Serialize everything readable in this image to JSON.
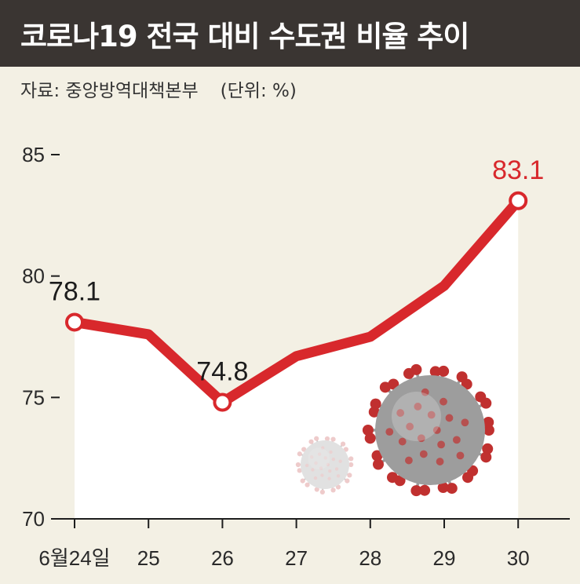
{
  "title": "코로나19 전국 대비 수도권 비율 추이",
  "source": "자료: 중앙방역대책본부",
  "unit": "(단위: %)",
  "colors": {
    "line": "#d8282c",
    "header_bg": "#3a3532",
    "background": "#f3f0e4",
    "plot_fill": "#ffffff"
  },
  "chart_data": {
    "type": "line",
    "categories": [
      "6월24일",
      "25",
      "26",
      "27",
      "28",
      "29",
      "30"
    ],
    "series": [
      {
        "values": [
          78.1,
          77.6,
          74.8,
          76.7,
          77.5,
          79.6,
          83.1
        ]
      }
    ],
    "labels": [
      {
        "index": 0,
        "text": "78.1"
      },
      {
        "index": 2,
        "text": "74.8"
      },
      {
        "index": 6,
        "text": "83.1",
        "highlight": true
      }
    ],
    "yticks": [
      "70",
      "75",
      "80",
      "85"
    ],
    "ylim": [
      70,
      85
    ],
    "grid": false,
    "legend": "none"
  }
}
